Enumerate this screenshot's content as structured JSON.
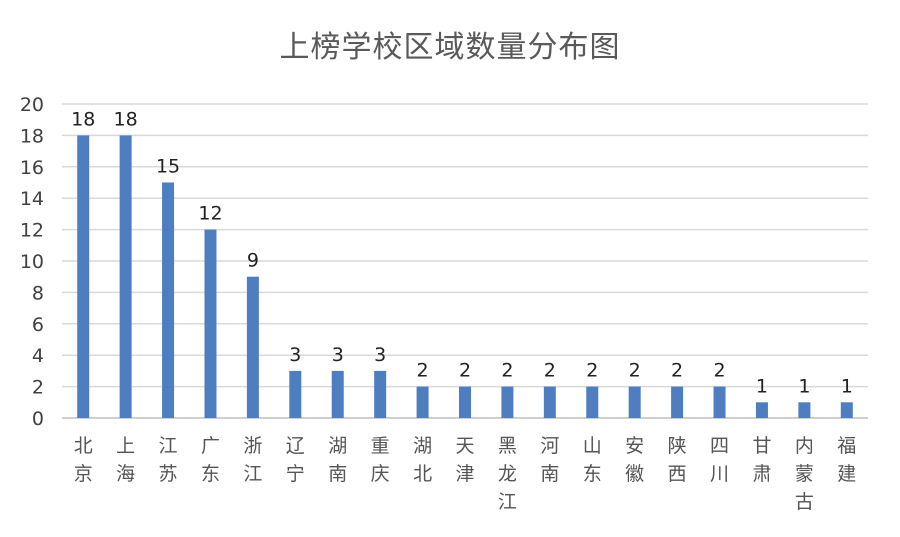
{
  "chart_data": {
    "type": "bar",
    "title": "上榜学校区域数量分布图",
    "categories": [
      "北京",
      "上海",
      "江苏",
      "广东",
      "浙江",
      "辽宁",
      "湖南",
      "重庆",
      "湖北",
      "天津",
      "黑龙江",
      "河南",
      "山东",
      "安徽",
      "陕西",
      "四川",
      "甘肃",
      "内蒙古",
      "福建"
    ],
    "values": [
      18,
      18,
      15,
      12,
      9,
      3,
      3,
      3,
      2,
      2,
      2,
      2,
      2,
      2,
      2,
      2,
      1,
      1,
      1
    ],
    "ylim": [
      0,
      20
    ],
    "yticks": [
      0,
      2,
      4,
      6,
      8,
      10,
      12,
      14,
      16,
      18,
      20
    ],
    "xlabel": "",
    "ylabel": "",
    "grid": true,
    "data_labels": true,
    "bar_color": "#4E7EC0",
    "grid_color": "#D9D9D9"
  }
}
